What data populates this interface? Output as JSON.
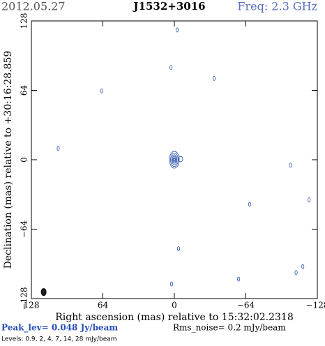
{
  "chart_data": {
    "type": "contour",
    "date": "2012.05.27",
    "title": "J1532+3016",
    "frequency": "Freq: 2.3 GHz",
    "x_label": "Right ascension (mas) relative to 15:32:02.2318",
    "y_label": "Declination (mas) relative to +30:16:28.859",
    "xlim": [
      128,
      -128
    ],
    "ylim": [
      -128,
      128
    ],
    "xticks": [
      128,
      64,
      0,
      {
        "value": -64,
        "label": "−64"
      },
      {
        "value": -128,
        "label": "−128"
      }
    ],
    "yticks": [
      {
        "value": -128,
        "label": "−128"
      },
      {
        "value": -64,
        "label": "−64"
      },
      0,
      64,
      128
    ],
    "color": "#3a5fb0",
    "sources": [
      {
        "x": 0,
        "y": 0
      },
      {
        "x": -2.5,
        "y": 119.7
      },
      {
        "x": 3,
        "y": 85
      },
      {
        "x": -35.6,
        "y": 75
      },
      {
        "x": 65,
        "y": 63.5
      },
      {
        "x": 104,
        "y": 10.6
      },
      {
        "x": -104,
        "y": -5
      },
      {
        "x": -120.6,
        "y": -37
      },
      {
        "x": -67.5,
        "y": -41
      },
      {
        "x": -3.75,
        "y": -82
      },
      {
        "x": -115,
        "y": -98.5
      },
      {
        "x": -109,
        "y": -104
      },
      {
        "x": -57.5,
        "y": -110
      },
      {
        "x": 2.5,
        "y": -114.5
      }
    ],
    "beam": {
      "x": 117,
      "y": -122
    },
    "peak": "Peak_lev=  0.048 Jy/beam",
    "rms": "Rms_noise=  0.2 mJy/beam",
    "levels": "Levels: 0.9,   2,   4,   7,  14,  28 mJy/beam"
  }
}
